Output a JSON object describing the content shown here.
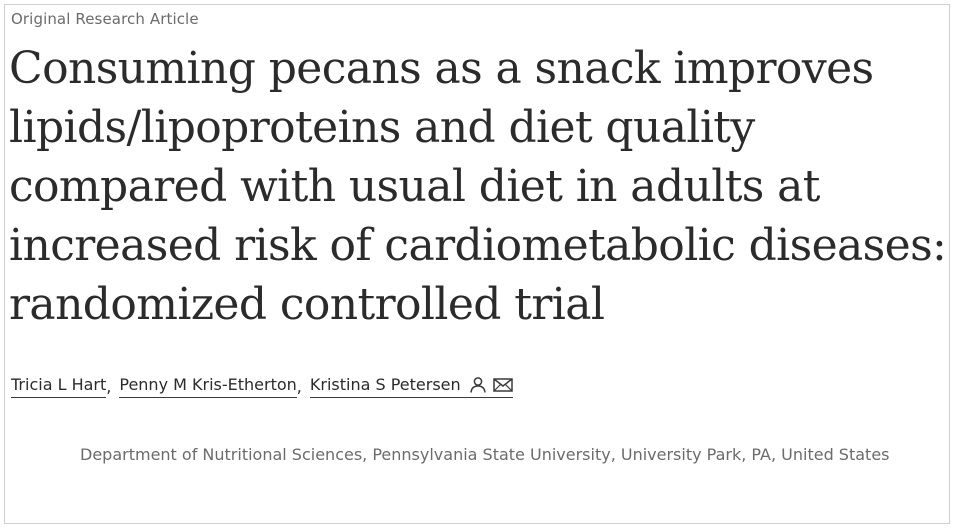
{
  "article": {
    "type_label": "Original Research Article",
    "title_lines": [
      "Consuming pecans as a snack improves",
      "lipids/lipoproteins and diet quality",
      "compared with usual diet in adults at",
      "increased risk of cardiometabolic diseases: a",
      "randomized controlled trial"
    ],
    "authors": [
      {
        "name": "Tricia L Hart",
        "separator": ","
      },
      {
        "name": "Penny M Kris-Etherton",
        "separator": ","
      },
      {
        "name": "Kristina S Petersen",
        "separator": ""
      }
    ],
    "author_icons": [
      "person-icon",
      "envelope-icon"
    ],
    "affiliation": "Department of Nutritional Sciences, Pennsylvania State University, University Park, PA, United States"
  },
  "colors": {
    "title": "#2b2b2b",
    "muted": "#6b6b6b",
    "border": "#cfcfcf"
  }
}
